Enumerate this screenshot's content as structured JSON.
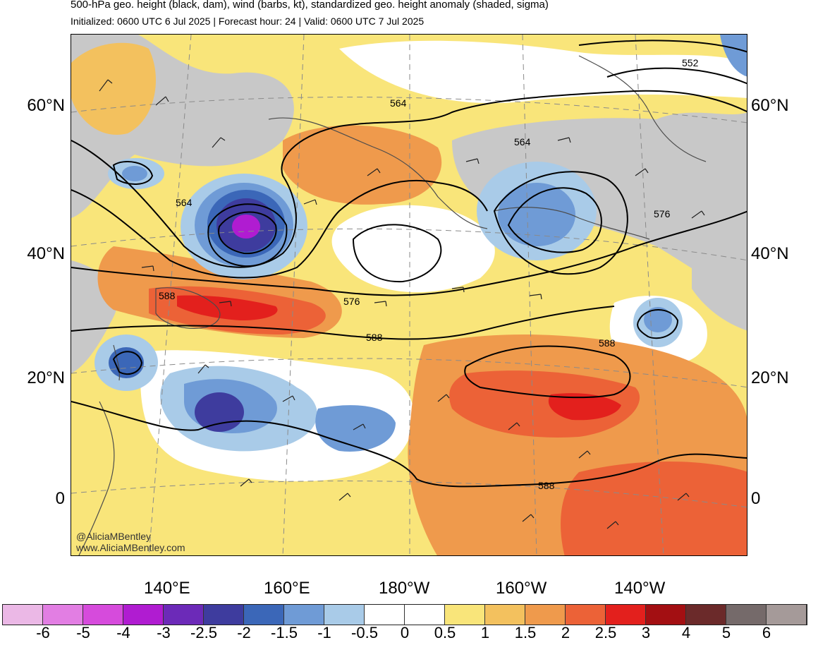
{
  "header": {
    "title": "500-hPa geo. height (black, dam), wind (barbs, kt), standardized geo. height anomaly (shaded, sigma)",
    "subtitle": "Initialized: 0600 UTC 6 Jul 2025 | Forecast hour: 24 | Valid: 0600 UTC 7 Jul 2025"
  },
  "latitude_labels": [
    "60°N",
    "40°N",
    "20°N",
    "0"
  ],
  "longitude_labels": [
    "140°E",
    "160°E",
    "180°W",
    "160°W",
    "140°W"
  ],
  "contour_labels": [
    "552",
    "564",
    "564",
    "564",
    "576",
    "576",
    "588",
    "588",
    "588",
    "588"
  ],
  "credits": {
    "handle": "@AliciaMBentley",
    "website": "www.AliciaMBentley.com"
  },
  "colorbar": {
    "labels": [
      "-6",
      "-5",
      "-4",
      "-3",
      "-2.5",
      "-2",
      "-1.5",
      "-1",
      "-0.5",
      "0",
      "0.5",
      "1",
      "1.5",
      "2",
      "2.5",
      "3",
      "4",
      "5",
      "6"
    ],
    "colors": [
      "#ebb8e6",
      "#e27ee3",
      "#d64bdc",
      "#b01cd1",
      "#6c2ab8",
      "#3e3c9e",
      "#3b67b8",
      "#6f9bd6",
      "#a9cbe8",
      "#ffffff",
      "#ffffff",
      "#f9e57a",
      "#f3c15e",
      "#ef9a4c",
      "#ec6237",
      "#e3201d",
      "#a30f12",
      "#6b2a2a",
      "#756a6a",
      "#a59a99"
    ]
  },
  "colors": {
    "background_neutral": "#ffffff",
    "land_outline": "#555555",
    "contour": "#000000",
    "grid": "#8a8a8a"
  }
}
